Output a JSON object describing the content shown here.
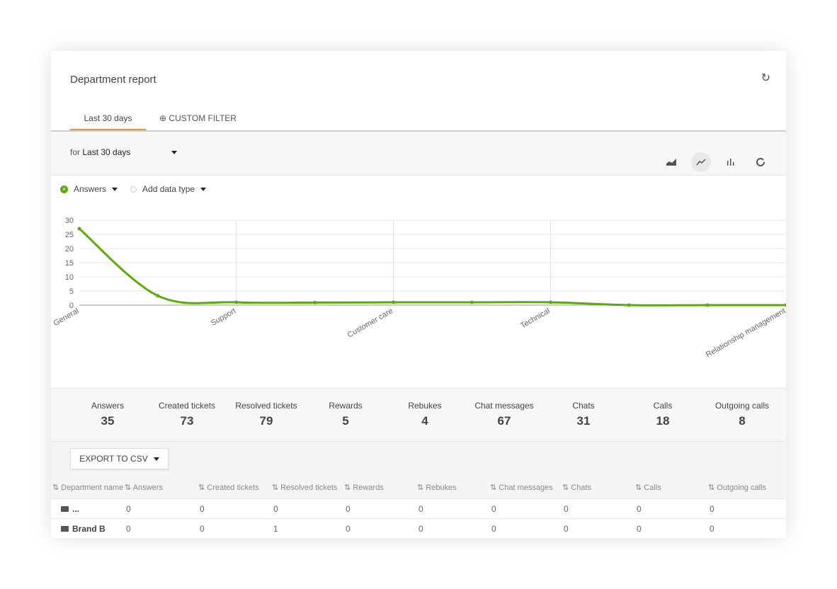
{
  "header": {
    "title": "Department report"
  },
  "tabs": [
    {
      "label": "Last 30 days",
      "active": true
    },
    {
      "label": "CUSTOM FILTER",
      "icon": "plus-circle-icon"
    }
  ],
  "filter": {
    "prefix": "for",
    "value": "Last 30 days"
  },
  "chart_types": [
    {
      "icon": "area-chart-icon"
    },
    {
      "icon": "line-chart-icon",
      "selected": true
    },
    {
      "icon": "bar-chart-icon"
    },
    {
      "icon": "donut-chart-icon"
    }
  ],
  "legend": {
    "series": "Answers",
    "add": "Add data type"
  },
  "colors": {
    "accent": "#f7941d",
    "series": "#5aaa0a"
  },
  "chart_data": {
    "type": "line",
    "series": [
      {
        "name": "Answers",
        "values": [
          27,
          3.3,
          1,
          0.9,
          1,
          1,
          1,
          0,
          0,
          0
        ]
      }
    ],
    "x_tick_labels": [
      {
        "index": 0,
        "label": "General"
      },
      {
        "index": 2,
        "label": "Support"
      },
      {
        "index": 4,
        "label": "Customer care"
      },
      {
        "index": 6,
        "label": "Technical"
      },
      {
        "index": 9,
        "label": "Relationship management"
      }
    ],
    "yticks": [
      0,
      5,
      10,
      15,
      20,
      25,
      30
    ],
    "ylim": [
      0,
      30
    ],
    "grid": true
  },
  "stats": [
    {
      "label": "Answers",
      "value": "35"
    },
    {
      "label": "Created tickets",
      "value": "73"
    },
    {
      "label": "Resolved tickets",
      "value": "79"
    },
    {
      "label": "Rewards",
      "value": "5"
    },
    {
      "label": "Rebukes",
      "value": "4"
    },
    {
      "label": "Chat messages",
      "value": "67"
    },
    {
      "label": "Chats",
      "value": "31"
    },
    {
      "label": "Calls",
      "value": "18"
    },
    {
      "label": "Outgoing calls",
      "value": "8"
    }
  ],
  "export_label": "EXPORT TO CSV",
  "table": {
    "columns": [
      "Department name",
      "Answers",
      "Created tickets",
      "Resolved tickets",
      "Rewards",
      "Rebukes",
      "Chat messages",
      "Chats",
      "Calls",
      "Outgoing calls"
    ],
    "rows": [
      [
        "...",
        "0",
        "0",
        "0",
        "0",
        "0",
        "0",
        "0",
        "0",
        "0"
      ],
      [
        "Brand B",
        "0",
        "0",
        "1",
        "0",
        "0",
        "0",
        "0",
        "0",
        "0"
      ]
    ]
  }
}
